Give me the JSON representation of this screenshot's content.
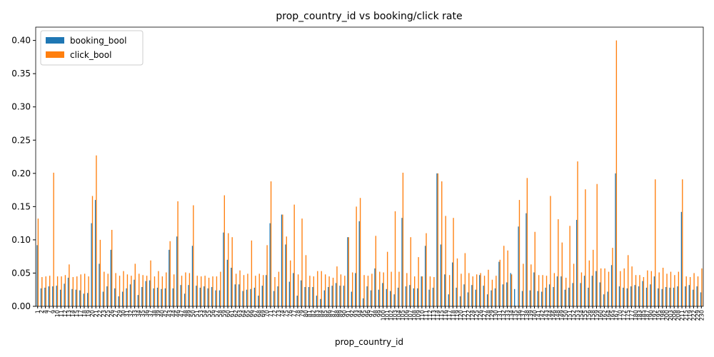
{
  "chart_data": {
    "type": "bar",
    "title": "prop_country_id vs booking/click rate",
    "x_label": "prop_country_id",
    "categories": [
      1,
      2,
      4,
      7,
      9,
      10,
      11,
      12,
      13,
      14,
      15,
      17,
      18,
      19,
      20,
      21,
      22,
      23,
      25,
      26,
      27,
      29,
      30,
      31,
      32,
      33,
      34,
      35,
      36,
      37,
      38,
      39,
      40,
      42,
      43,
      44,
      46,
      47,
      48,
      49,
      50,
      51,
      53,
      54,
      55,
      56,
      57,
      58,
      59,
      60,
      61,
      62,
      63,
      64,
      65,
      66,
      67,
      68,
      69,
      70,
      71,
      72,
      73,
      74,
      75,
      76,
      77,
      78,
      79,
      80,
      81,
      82,
      83,
      84,
      85,
      86,
      87,
      88,
      89,
      90,
      91,
      92,
      93,
      94,
      95,
      96,
      97,
      98,
      99,
      100,
      101,
      102,
      103,
      104,
      105,
      106,
      107,
      108,
      109,
      110,
      111,
      112,
      113,
      114,
      115,
      116,
      117,
      118,
      119,
      120,
      121,
      122,
      124,
      125,
      126,
      127,
      128,
      129,
      130,
      131,
      132,
      133,
      134,
      135,
      136,
      137,
      138,
      139,
      140,
      141,
      142,
      143,
      144,
      146,
      148,
      149,
      150,
      151,
      152,
      153,
      154,
      155,
      156,
      158,
      159,
      160,
      162,
      164,
      165,
      167,
      170,
      172,
      175,
      177,
      180,
      183,
      185,
      187,
      190,
      192,
      195,
      198,
      200,
      203,
      206,
      208,
      211,
      215,
      219,
      222,
      229,
      230
    ],
    "series": [
      {
        "name": "booking_bool",
        "color": "#1f77b4",
        "values": [
          0.092,
          0.027,
          0.028,
          0.03,
          0.03,
          0.031,
          0.025,
          0.034,
          0.043,
          0.026,
          0.025,
          0.024,
          0.019,
          0.02,
          0.125,
          0.16,
          0.064,
          0.022,
          0.03,
          0.085,
          0.027,
          0.015,
          0.022,
          0.027,
          0.033,
          0.04,
          0.017,
          0.029,
          0.038,
          0.039,
          0.027,
          0.028,
          0.026,
          0.027,
          0.085,
          0.027,
          0.105,
          0.032,
          0.019,
          0.032,
          0.091,
          0.031,
          0.028,
          0.03,
          0.027,
          0.029,
          0.024,
          0.024,
          0.111,
          0.07,
          0.058,
          0.033,
          0.033,
          0.023,
          0.025,
          0.026,
          0.028,
          0.016,
          0.031,
          0.047,
          0.125,
          0.023,
          0.03,
          0.138,
          0.093,
          0.037,
          0.05,
          0.016,
          0.039,
          0.029,
          0.029,
          0.029,
          0.016,
          0.011,
          0.024,
          0.029,
          0.031,
          0.035,
          0.031,
          0.031,
          0.104,
          0.022,
          0.05,
          0.128,
          0.012,
          0.03,
          0.024,
          0.057,
          0.025,
          0.035,
          0.026,
          0.023,
          0.018,
          0.028,
          0.133,
          0.03,
          0.032,
          0.027,
          0.027,
          0.045,
          0.091,
          0.025,
          0.028,
          0.2,
          0.093,
          0.048,
          0.018,
          0.066,
          0.028,
          0.015,
          0.033,
          0.021,
          0.032,
          0.025,
          0.047,
          0.031,
          0.018,
          0.024,
          0.027,
          0.067,
          0.033,
          0.036,
          0.05,
          0.026,
          0.12,
          0.023,
          0.14,
          0.024,
          0.051,
          0.023,
          0.022,
          0.028,
          0.033,
          0.029,
          0.045,
          0.045,
          0.025,
          0.028,
          0.035,
          0.13,
          0.035,
          0.046,
          0.028,
          0.046,
          0.053,
          0.036,
          0.018,
          0.022,
          0.062,
          0.2,
          0.03,
          0.028,
          0.027,
          0.03,
          0.032,
          0.03,
          0.038,
          0.028,
          0.033,
          0.045,
          0.027,
          0.026,
          0.029,
          0.028,
          0.028,
          0.03,
          0.142,
          0.03,
          0.032,
          0.025,
          0.03,
          0.021
        ]
      },
      {
        "name": "click_bool",
        "color": "#ff7f0e",
        "values": [
          0.132,
          0.044,
          0.045,
          0.046,
          0.201,
          0.045,
          0.045,
          0.047,
          0.063,
          0.044,
          0.045,
          0.048,
          0.049,
          0.045,
          0.166,
          0.227,
          0.1,
          0.052,
          0.049,
          0.115,
          0.05,
          0.046,
          0.053,
          0.048,
          0.046,
          0.064,
          0.049,
          0.047,
          0.046,
          0.069,
          0.045,
          0.053,
          0.045,
          0.051,
          0.098,
          0.048,
          0.158,
          0.046,
          0.051,
          0.05,
          0.152,
          0.046,
          0.045,
          0.046,
          0.043,
          0.045,
          0.045,
          0.052,
          0.167,
          0.11,
          0.104,
          0.049,
          0.054,
          0.047,
          0.049,
          0.099,
          0.046,
          0.049,
          0.047,
          0.092,
          0.188,
          0.044,
          0.052,
          0.138,
          0.105,
          0.069,
          0.153,
          0.048,
          0.132,
          0.077,
          0.046,
          0.045,
          0.053,
          0.053,
          0.048,
          0.045,
          0.043,
          0.06,
          0.048,
          0.046,
          0.104,
          0.051,
          0.15,
          0.163,
          0.047,
          0.046,
          0.049,
          0.106,
          0.052,
          0.051,
          0.082,
          0.052,
          0.143,
          0.052,
          0.201,
          0.05,
          0.104,
          0.045,
          0.074,
          0.045,
          0.11,
          0.045,
          0.044,
          0.2,
          0.188,
          0.136,
          0.047,
          0.133,
          0.072,
          0.049,
          0.08,
          0.05,
          0.045,
          0.048,
          0.05,
          0.046,
          0.055,
          0.04,
          0.046,
          0.07,
          0.091,
          0.084,
          0.048,
          0.001,
          0.16,
          0.064,
          0.193,
          0.063,
          0.112,
          0.047,
          0.047,
          0.046,
          0.166,
          0.05,
          0.131,
          0.096,
          0.043,
          0.121,
          0.064,
          0.218,
          0.051,
          0.176,
          0.069,
          0.085,
          0.184,
          0.057,
          0.057,
          0.052,
          0.088,
          0.4,
          0.053,
          0.057,
          0.077,
          0.06,
          0.047,
          0.047,
          0.044,
          0.054,
          0.053,
          0.191,
          0.051,
          0.058,
          0.049,
          0.052,
          0.047,
          0.052,
          0.191,
          0.045,
          0.044,
          0.05,
          0.045,
          0.057
        ]
      }
    ],
    "ylim": [
      0,
      0.42
    ],
    "yticks": [
      {
        "value": 0,
        "label": "0.00"
      },
      {
        "value": 0.05,
        "label": "0.05"
      },
      {
        "value": 0.1,
        "label": "0.10"
      },
      {
        "value": 0.15,
        "label": "0.15"
      },
      {
        "value": 0.2,
        "label": "0.20"
      },
      {
        "value": 0.25,
        "label": "0.25"
      },
      {
        "value": 0.3,
        "label": "0.30"
      },
      {
        "value": 0.35,
        "label": "0.35"
      },
      {
        "value": 0.4,
        "label": "0.40"
      }
    ],
    "legend": "upper left"
  }
}
